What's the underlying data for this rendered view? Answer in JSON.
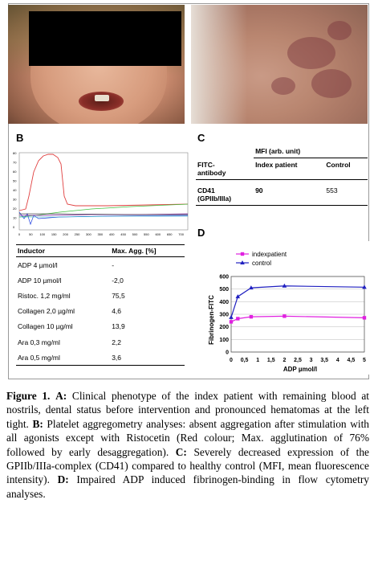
{
  "panels": {
    "b_label": "B",
    "c_label": "C",
    "d_label": "D"
  },
  "aggregometry": {
    "x_ticks": [
      "0",
      "50",
      "100",
      "150",
      "200",
      "250",
      "300",
      "350",
      "400",
      "450",
      "500",
      "550",
      "600",
      "650",
      "700"
    ],
    "y_ticks": [
      "80",
      "70",
      "60",
      "50",
      "40",
      "30",
      "20",
      "10",
      "0"
    ]
  },
  "agonist_table": {
    "headers": [
      "Inductor",
      "Max. Agg. [%]"
    ],
    "rows": [
      [
        "ADP 4 µmol/l",
        "-"
      ],
      [
        "ADP 10 µmol/l",
        "-2,0"
      ],
      [
        "Ristoc. 1,2 mg/ml",
        "75,5"
      ],
      [
        "Collagen 2,0 µg/ml",
        "4,6"
      ],
      [
        "Collagen 10 µg/ml",
        "13,9"
      ],
      [
        "Ara 0,3 mg/ml",
        "2,2"
      ],
      [
        "Ara 0,5 mg/ml",
        "3,6"
      ]
    ]
  },
  "mfi_table": {
    "header": "MFI (arb. unit)",
    "col1_l1": "FITC-",
    "col1_l2": "antibody",
    "col2": "Index patient",
    "col3": "Control",
    "row_l1": "CD41",
    "row_l2": "(GPIIb/IIIa)",
    "row_v1": "90",
    "row_v2": "553"
  },
  "chart_data": {
    "type": "line",
    "title": "",
    "xlabel": "ADP µmol/l",
    "ylabel": "Fibrinogen-FITC",
    "xlim": [
      0,
      5
    ],
    "ylim": [
      0,
      600
    ],
    "x_ticks": [
      "0",
      "0,5",
      "1",
      "1,5",
      "2",
      "2,5",
      "3",
      "3,5",
      "4",
      "4,5",
      "5"
    ],
    "y_ticks": [
      "0",
      "100",
      "200",
      "300",
      "400",
      "500",
      "600"
    ],
    "legend": "top-left",
    "series": [
      {
        "name": "indexpatient",
        "color": "#e020e0",
        "marker": "square",
        "x": [
          0,
          0.25,
          0.75,
          2,
          5
        ],
        "y": [
          240,
          265,
          280,
          285,
          272
        ]
      },
      {
        "name": "control",
        "color": "#2020c0",
        "marker": "triangle",
        "x": [
          0,
          0.25,
          0.75,
          2,
          5
        ],
        "y": [
          275,
          440,
          510,
          525,
          515
        ]
      }
    ]
  },
  "caption": {
    "fig": "Figure 1.",
    "a": "A:",
    "t1": " Clinical phenotype of the index patient with remaining blood at nostrils, dental status before intervention and pronounced hematomas at the left tight. ",
    "b": "B:",
    "t2": " Platelet aggregometry analyses: absent aggregation after stimulation with all agonists except with Ristocetin (Red colour; Max. agglutination of 76% followed by early desaggregation). ",
    "c": "C:",
    "t3": " Severely decreased expression of the GPIIb/IIIa-complex (CD41) compared to healthy control (MFI, mean fluorescence intensity). ",
    "d": "D:",
    "t4": " Impaired ADP induced fibrinogen-binding in flow cytometry analyses."
  }
}
